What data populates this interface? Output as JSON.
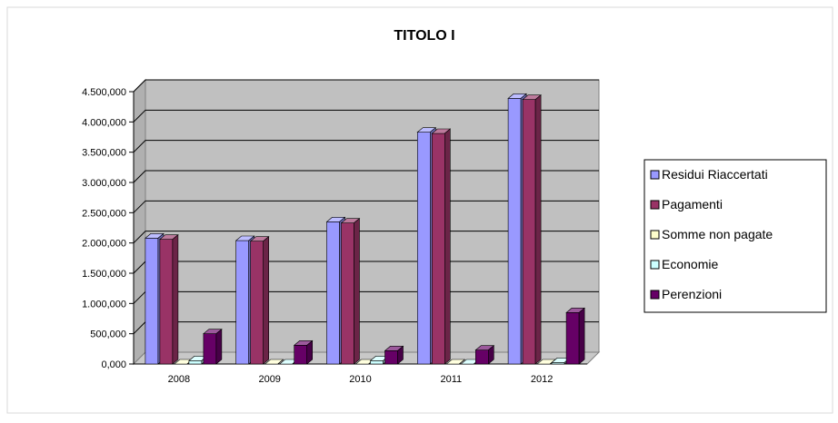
{
  "chart_data": {
    "type": "bar",
    "title": "TITOLO I",
    "xlabel": "",
    "ylabel": "",
    "categories": [
      "2008",
      "2009",
      "2010",
      "2011",
      "2012"
    ],
    "ylim": [
      0,
      4500000
    ],
    "yticks": [
      "0,000",
      "500,000",
      "1.000,000",
      "1.500,000",
      "2.000,000",
      "2.500,000",
      "3.000,000",
      "3.500,000",
      "4.000,000",
      "4.500,000"
    ],
    "grid": true,
    "legend_position": "right",
    "series": [
      {
        "name": "Residui Riaccertati",
        "color": "#9999ff",
        "values": [
          2080000,
          2040000,
          2350000,
          3830000,
          4390000
        ]
      },
      {
        "name": "Pagamenti",
        "color": "#993366",
        "values": [
          2060000,
          2030000,
          2330000,
          3810000,
          4370000
        ]
      },
      {
        "name": "Somme non pagate",
        "color": "#ffffcc",
        "values": [
          0,
          0,
          0,
          0,
          0
        ]
      },
      {
        "name": "Economie",
        "color": "#ccffff",
        "values": [
          55000,
          0,
          55000,
          0,
          25000
        ]
      },
      {
        "name": "Perenzioni",
        "color": "#660066",
        "values": [
          500000,
          310000,
          220000,
          230000,
          850000
        ]
      }
    ]
  }
}
